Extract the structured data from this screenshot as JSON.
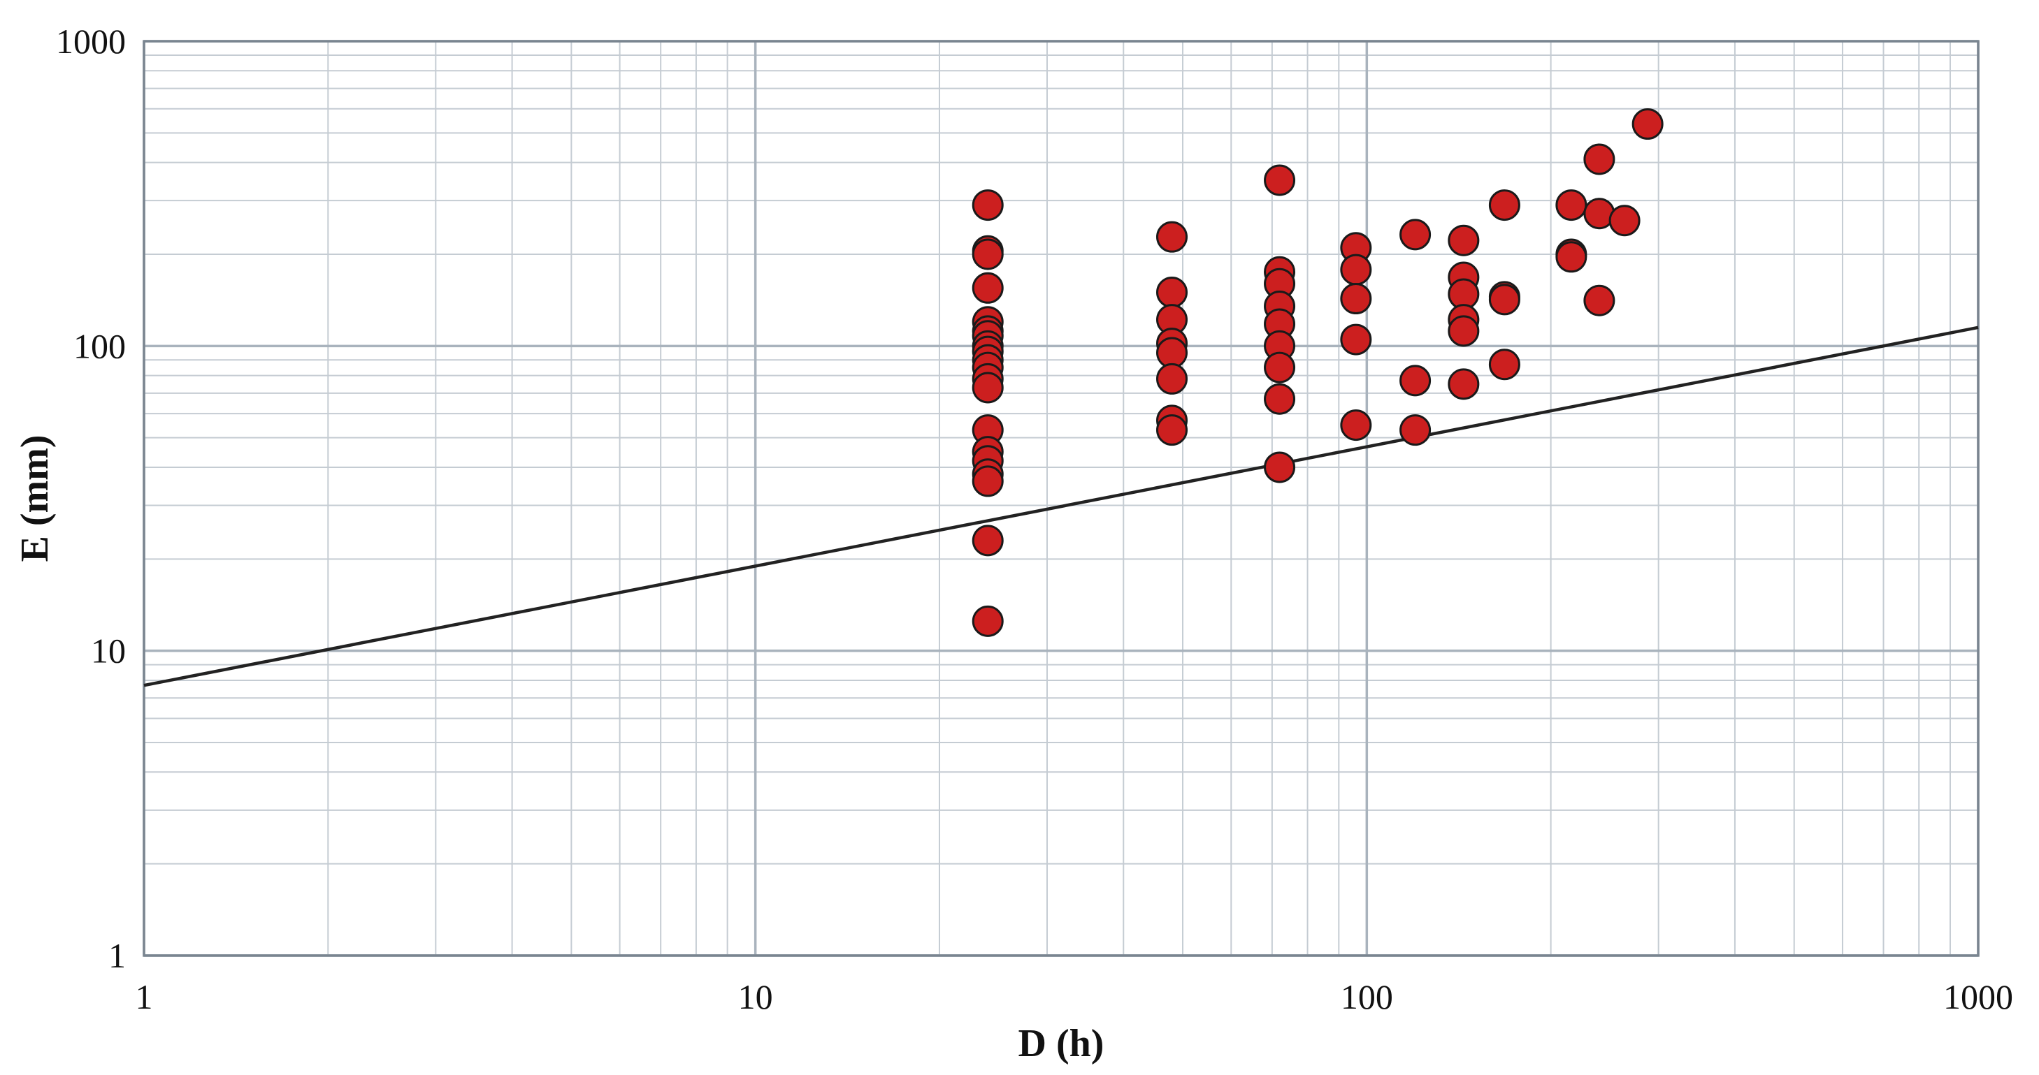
{
  "chart_data": {
    "type": "scatter",
    "title": "",
    "xlabel": "D (h)",
    "ylabel": "E (mm)",
    "xscale": "log",
    "yscale": "log",
    "xlim": [
      1,
      1000
    ],
    "ylim": [
      1,
      1000
    ],
    "x_ticks": [
      "1",
      "10",
      "100",
      "1000"
    ],
    "y_ticks": [
      "1",
      "10",
      "100",
      "1000"
    ],
    "grid": true,
    "legend": "none",
    "colors": {
      "marker_fill": "#cc1f1f",
      "marker_edge": "#1a1a1a",
      "line": "#222222",
      "grid_major": "#a9b3bd",
      "grid_minor": "#c5ccd3",
      "frame": "#7a8590"
    },
    "series": [
      {
        "kind": "points",
        "points": [
          [
            24,
            290
          ],
          [
            24,
            205
          ],
          [
            24,
            200
          ],
          [
            24,
            155
          ],
          [
            24,
            120
          ],
          [
            24,
            112
          ],
          [
            24,
            108
          ],
          [
            24,
            100
          ],
          [
            24,
            96
          ],
          [
            24,
            90
          ],
          [
            24,
            85
          ],
          [
            24,
            78
          ],
          [
            24,
            73
          ],
          [
            24,
            53
          ],
          [
            24,
            45
          ],
          [
            24,
            42
          ],
          [
            24,
            38
          ],
          [
            24,
            36
          ],
          [
            24,
            23
          ],
          [
            24,
            12.5
          ],
          [
            48,
            228
          ],
          [
            48,
            150
          ],
          [
            48,
            122
          ],
          [
            48,
            102
          ],
          [
            48,
            95
          ],
          [
            48,
            78
          ],
          [
            48,
            57
          ],
          [
            48,
            53
          ],
          [
            72,
            350
          ],
          [
            72,
            175
          ],
          [
            72,
            160
          ],
          [
            72,
            135
          ],
          [
            72,
            118
          ],
          [
            72,
            100
          ],
          [
            72,
            85
          ],
          [
            72,
            67
          ],
          [
            72,
            40
          ],
          [
            96,
            210
          ],
          [
            96,
            178
          ],
          [
            96,
            143
          ],
          [
            96,
            105
          ],
          [
            96,
            55
          ],
          [
            120,
            232
          ],
          [
            120,
            77
          ],
          [
            120,
            53
          ],
          [
            144,
            222
          ],
          [
            144,
            168
          ],
          [
            144,
            148
          ],
          [
            144,
            122
          ],
          [
            144,
            112
          ],
          [
            144,
            75
          ],
          [
            168,
            290
          ],
          [
            168,
            145
          ],
          [
            168,
            142
          ],
          [
            168,
            87
          ],
          [
            216,
            290
          ],
          [
            216,
            200
          ],
          [
            216,
            196
          ],
          [
            240,
            410
          ],
          [
            240,
            272
          ],
          [
            240,
            141
          ],
          [
            264,
            258
          ],
          [
            288,
            535
          ]
        ]
      },
      {
        "kind": "line",
        "points": [
          [
            1,
            7.7
          ],
          [
            1000,
            115
          ]
        ]
      }
    ]
  }
}
